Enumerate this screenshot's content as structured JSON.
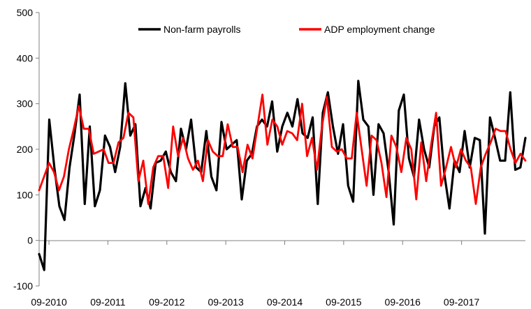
{
  "chart_data": {
    "type": "line",
    "title": "",
    "xlabel": "",
    "ylabel": "",
    "ylim": [
      -100,
      500
    ],
    "yticks": [
      "500",
      "400",
      "300",
      "200",
      "100",
      "0",
      "-100"
    ],
    "xticks": [
      "09-2010",
      "09-2011",
      "09-2012",
      "09-2013",
      "09-2014",
      "09-2015",
      "09-2016",
      "09-2017"
    ],
    "x_start": "07-2010",
    "x_end": "10-2018",
    "grid": false,
    "legend_position": "top",
    "series": [
      {
        "name": "Non-farm payrolls",
        "color": "#000000",
        "values": [
          -30,
          -65,
          265,
          160,
          75,
          45,
          160,
          235,
          320,
          80,
          250,
          75,
          110,
          230,
          205,
          150,
          205,
          345,
          230,
          255,
          75,
          115,
          70,
          170,
          175,
          195,
          150,
          130,
          245,
          200,
          265,
          160,
          150,
          240,
          140,
          110,
          260,
          200,
          210,
          220,
          90,
          175,
          190,
          250,
          265,
          250,
          305,
          195,
          250,
          280,
          250,
          310,
          235,
          225,
          270,
          80,
          280,
          325,
          250,
          190,
          255,
          120,
          85,
          350,
          265,
          250,
          100,
          255,
          235,
          150,
          35,
          285,
          320,
          180,
          140,
          265,
          200,
          160,
          250,
          270,
          145,
          70,
          175,
          150,
          240,
          160,
          225,
          220,
          15,
          270,
          225,
          175,
          175,
          325,
          155,
          160,
          225
        ]
      },
      {
        "name": "ADP employment change",
        "color": "#ff0000",
        "values": [
          110,
          140,
          170,
          150,
          110,
          140,
          200,
          245,
          295,
          245,
          245,
          190,
          195,
          200,
          170,
          170,
          215,
          225,
          280,
          270,
          130,
          175,
          80,
          160,
          185,
          185,
          115,
          250,
          185,
          225,
          180,
          155,
          175,
          130,
          220,
          195,
          185,
          185,
          255,
          205,
          205,
          150,
          210,
          180,
          250,
          320,
          210,
          265,
          250,
          210,
          240,
          235,
          220,
          300,
          185,
          225,
          155,
          250,
          315,
          205,
          195,
          200,
          180,
          180,
          280,
          200,
          120,
          230,
          220,
          170,
          95,
          230,
          205,
          150,
          225,
          200,
          90,
          215,
          130,
          210,
          280,
          120,
          160,
          205,
          160,
          200,
          175,
          160,
          80,
          160,
          190,
          215,
          245,
          240,
          240,
          200,
          170,
          190,
          175
        ]
      }
    ]
  }
}
